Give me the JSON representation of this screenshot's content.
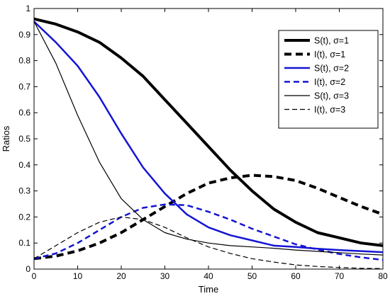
{
  "chart_data": {
    "type": "line",
    "title": "",
    "xlabel": "Time",
    "ylabel": "Ratios",
    "xlim": [
      0,
      80
    ],
    "ylim": [
      0,
      1
    ],
    "xticks": [
      0,
      10,
      20,
      30,
      40,
      50,
      60,
      70,
      80
    ],
    "yticks": [
      0,
      0.1,
      0.2,
      0.3,
      0.4,
      0.5,
      0.6,
      0.7,
      0.8,
      0.9,
      1
    ],
    "grid": false,
    "legend_position": "top-right",
    "x": [
      0,
      5,
      10,
      15,
      20,
      25,
      30,
      35,
      40,
      45,
      50,
      55,
      60,
      65,
      70,
      75,
      80
    ],
    "series": [
      {
        "name": "S(t), σ=1",
        "color": "#000000",
        "style": "solid-thick",
        "values": [
          0.96,
          0.94,
          0.91,
          0.87,
          0.81,
          0.74,
          0.65,
          0.56,
          0.47,
          0.38,
          0.3,
          0.23,
          0.18,
          0.14,
          0.12,
          0.1,
          0.09
        ]
      },
      {
        "name": "I(t), σ=1",
        "color": "#000000",
        "style": "dashed-thick",
        "values": [
          0.04,
          0.05,
          0.07,
          0.1,
          0.14,
          0.19,
          0.24,
          0.29,
          0.33,
          0.35,
          0.36,
          0.355,
          0.34,
          0.31,
          0.275,
          0.24,
          0.21
        ]
      },
      {
        "name": "S(t), σ=2",
        "color": "#1414d4",
        "style": "solid",
        "values": [
          0.95,
          0.87,
          0.78,
          0.66,
          0.52,
          0.39,
          0.29,
          0.21,
          0.16,
          0.13,
          0.11,
          0.09,
          0.085,
          0.078,
          0.073,
          0.069,
          0.065
        ]
      },
      {
        "name": "I(t), σ=2",
        "color": "#1414d4",
        "style": "dashed",
        "values": [
          0.04,
          0.06,
          0.1,
          0.15,
          0.2,
          0.235,
          0.248,
          0.245,
          0.22,
          0.19,
          0.155,
          0.125,
          0.095,
          0.075,
          0.058,
          0.045,
          0.035
        ]
      },
      {
        "name": "S(t), σ=3",
        "color": "#000000",
        "style": "solid-thin",
        "values": [
          0.95,
          0.79,
          0.59,
          0.41,
          0.27,
          0.19,
          0.14,
          0.115,
          0.1,
          0.09,
          0.085,
          0.08,
          0.073,
          0.068,
          0.063,
          0.058,
          0.054
        ]
      },
      {
        "name": "I(t), σ=3",
        "color": "#000000",
        "style": "dashed-thin",
        "values": [
          0.04,
          0.09,
          0.14,
          0.18,
          0.2,
          0.19,
          0.16,
          0.12,
          0.085,
          0.06,
          0.04,
          0.027,
          0.016,
          0.01,
          0.006,
          0.003,
          0.002
        ]
      }
    ]
  }
}
